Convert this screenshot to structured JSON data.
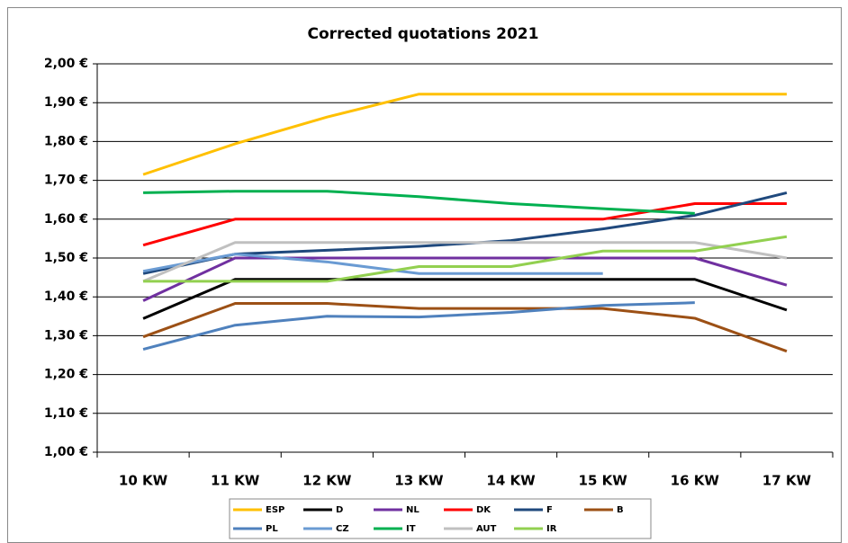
{
  "chart_data": {
    "type": "line",
    "title": "Corrected quotations 2021",
    "categories": [
      "10 KW",
      "11 KW",
      "12 KW",
      "13 KW",
      "14 KW",
      "15 KW",
      "16 KW",
      "17 KW"
    ],
    "ylim": [
      1.0,
      2.0
    ],
    "yticks": [
      {
        "value": 1.0,
        "label": "1,00 €"
      },
      {
        "value": 1.1,
        "label": "1,10 €"
      },
      {
        "value": 1.2,
        "label": "1,20 €"
      },
      {
        "value": 1.3,
        "label": "1,30 €"
      },
      {
        "value": 1.4,
        "label": "1,40 €"
      },
      {
        "value": 1.5,
        "label": "1,50 €"
      },
      {
        "value": 1.6,
        "label": "1,60 €"
      },
      {
        "value": 1.7,
        "label": "1,70 €"
      },
      {
        "value": 1.8,
        "label": "1,80 €"
      },
      {
        "value": 1.9,
        "label": "1,90 €"
      },
      {
        "value": 2.0,
        "label": "2,00 €"
      }
    ],
    "grid": true,
    "legend": "bottom",
    "series": [
      {
        "name": "ESP",
        "color": "#ffc000",
        "values": [
          1.715,
          1.794,
          1.863,
          1.922,
          1.922,
          1.922,
          1.922,
          1.922
        ]
      },
      {
        "name": "D",
        "color": "#000000",
        "values": [
          1.344,
          1.445,
          1.445,
          1.445,
          1.445,
          1.445,
          1.445,
          1.366
        ]
      },
      {
        "name": "NL",
        "color": "#7030a0",
        "values": [
          1.39,
          1.5,
          1.5,
          1.5,
          1.5,
          1.5,
          1.5,
          1.43
        ]
      },
      {
        "name": "DK",
        "color": "#ff0000",
        "values": [
          1.533,
          1.6,
          1.6,
          1.6,
          1.6,
          1.6,
          1.64,
          1.64
        ]
      },
      {
        "name": "F",
        "color": "#1f497d",
        "values": [
          1.46,
          1.51,
          1.52,
          1.53,
          1.545,
          1.575,
          1.61,
          1.668
        ]
      },
      {
        "name": "B",
        "color": "#9c5015",
        "values": [
          1.297,
          1.383,
          1.383,
          1.37,
          1.37,
          1.37,
          1.345,
          1.26
        ]
      },
      {
        "name": "PL",
        "color": "#4f81bd",
        "values": [
          1.265,
          1.327,
          1.35,
          1.348,
          1.36,
          1.378,
          1.385,
          null
        ]
      },
      {
        "name": "CZ",
        "color": "#6a9bd3",
        "values": [
          1.466,
          1.51,
          1.49,
          1.46,
          1.46,
          1.46,
          null,
          null
        ]
      },
      {
        "name": "IT",
        "color": "#00b050",
        "values": [
          1.668,
          1.672,
          1.672,
          1.658,
          1.64,
          1.627,
          1.615,
          null
        ]
      },
      {
        "name": "AUT",
        "color": "#c0c0c0",
        "values": [
          1.44,
          1.54,
          1.54,
          1.54,
          1.54,
          1.54,
          1.54,
          1.5
        ]
      },
      {
        "name": "IR",
        "color": "#92d050",
        "values": [
          1.44,
          1.44,
          1.44,
          1.478,
          1.478,
          1.518,
          1.518,
          1.555
        ]
      }
    ]
  }
}
